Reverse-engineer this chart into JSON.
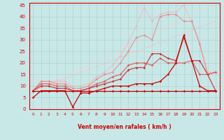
{
  "xlabel": "Vent moyen/en rafales ( km/h )",
  "xlim": [
    -0.5,
    23.5
  ],
  "ylim": [
    0,
    46
  ],
  "yticks": [
    0,
    5,
    10,
    15,
    20,
    25,
    30,
    35,
    40,
    45
  ],
  "xticks": [
    0,
    1,
    2,
    3,
    4,
    5,
    6,
    7,
    8,
    9,
    10,
    11,
    12,
    13,
    14,
    15,
    16,
    17,
    18,
    19,
    20,
    21,
    22,
    23
  ],
  "bg_color": "#c8e8e8",
  "grid_color": "#aacccc",
  "series": [
    {
      "x": [
        0,
        1,
        2,
        3,
        4,
        5,
        6,
        7,
        8,
        9,
        10,
        11,
        12,
        13,
        14,
        15,
        16,
        17,
        18,
        19,
        20,
        21,
        22,
        23
      ],
      "y": [
        8,
        8,
        8,
        8,
        8,
        8,
        8,
        8,
        8,
        8,
        8,
        8,
        8,
        8,
        8,
        8,
        8,
        8,
        8,
        8,
        8,
        8,
        8,
        8
      ],
      "color": "#bb0000",
      "marker": "D",
      "markersize": 1.8,
      "linewidth": 0.9,
      "alpha": 1.0,
      "zorder": 5
    },
    {
      "x": [
        0,
        1,
        2,
        3,
        4,
        5,
        6,
        7,
        8,
        9,
        10,
        11,
        12,
        13,
        14,
        15,
        16,
        17,
        18,
        19,
        20,
        21,
        22,
        23
      ],
      "y": [
        5,
        8,
        8,
        8,
        8,
        1,
        7,
        7,
        8,
        9,
        10,
        10,
        10,
        11,
        11,
        11,
        12,
        15,
        20,
        32,
        21,
        10,
        8,
        8
      ],
      "color": "#cc0000",
      "marker": "D",
      "markersize": 1.8,
      "linewidth": 0.9,
      "alpha": 1.0,
      "zorder": 4
    },
    {
      "x": [
        0,
        1,
        2,
        3,
        4,
        5,
        6,
        7,
        8,
        9,
        10,
        11,
        12,
        13,
        14,
        15,
        16,
        17,
        18,
        19,
        20,
        21,
        22,
        23
      ],
      "y": [
        8,
        10,
        10,
        9,
        9,
        8,
        8,
        9,
        10,
        11,
        12,
        13,
        17,
        18,
        18,
        24,
        24,
        22,
        21,
        31,
        21,
        21,
        15,
        8
      ],
      "color": "#cc2222",
      "marker": "D",
      "markersize": 1.8,
      "linewidth": 0.9,
      "alpha": 0.85,
      "zorder": 3
    },
    {
      "x": [
        0,
        1,
        2,
        3,
        4,
        5,
        6,
        7,
        8,
        9,
        10,
        11,
        12,
        13,
        14,
        15,
        16,
        17,
        18,
        19,
        20,
        21,
        22,
        23
      ],
      "y": [
        8,
        11,
        11,
        10,
        10,
        8,
        8,
        9,
        11,
        12,
        14,
        15,
        19,
        20,
        20,
        19,
        22,
        20,
        20,
        20,
        21,
        15,
        15,
        16
      ],
      "color": "#dd4444",
      "marker": "D",
      "markersize": 1.8,
      "linewidth": 0.9,
      "alpha": 0.75,
      "zorder": 3
    },
    {
      "x": [
        0,
        1,
        2,
        3,
        4,
        5,
        6,
        7,
        8,
        9,
        10,
        11,
        12,
        13,
        14,
        15,
        16,
        17,
        18,
        19,
        20,
        21,
        22,
        23
      ],
      "y": [
        8,
        12,
        12,
        11,
        11,
        9,
        9,
        10,
        13,
        15,
        16,
        20,
        25,
        31,
        32,
        30,
        40,
        41,
        41,
        38,
        38,
        28,
        15,
        16
      ],
      "color": "#ee7777",
      "marker": "D",
      "markersize": 1.8,
      "linewidth": 0.9,
      "alpha": 0.65,
      "zorder": 2
    },
    {
      "x": [
        0,
        1,
        2,
        3,
        4,
        5,
        6,
        7,
        8,
        9,
        10,
        11,
        12,
        13,
        14,
        15,
        16,
        17,
        18,
        19,
        20,
        21,
        22,
        23
      ],
      "y": [
        8,
        12,
        12,
        12,
        12,
        10,
        10,
        11,
        14,
        16,
        19,
        23,
        29,
        36,
        44,
        38,
        41,
        42,
        42,
        45,
        38,
        29,
        16,
        16
      ],
      "color": "#ffaaaa",
      "marker": "D",
      "markersize": 1.8,
      "linewidth": 0.9,
      "alpha": 0.6,
      "zorder": 1
    },
    {
      "x": [
        0,
        23
      ],
      "y": [
        8,
        45
      ],
      "color": "#ffcccc",
      "marker": null,
      "markersize": 0,
      "linewidth": 0.9,
      "alpha": 0.55,
      "zorder": 1
    },
    {
      "x": [
        0,
        23
      ],
      "y": [
        8,
        38
      ],
      "color": "#ffbbbb",
      "marker": null,
      "markersize": 0,
      "linewidth": 0.9,
      "alpha": 0.55,
      "zorder": 1
    }
  ],
  "arrows": {
    "y_data": -2.8,
    "color": "#cc0000",
    "angles_deg": [
      0,
      0,
      0,
      0,
      0,
      45,
      45,
      60,
      75,
      90,
      90,
      90,
      100,
      110,
      120,
      120,
      120,
      130,
      135,
      135,
      135,
      135,
      135,
      135
    ]
  }
}
